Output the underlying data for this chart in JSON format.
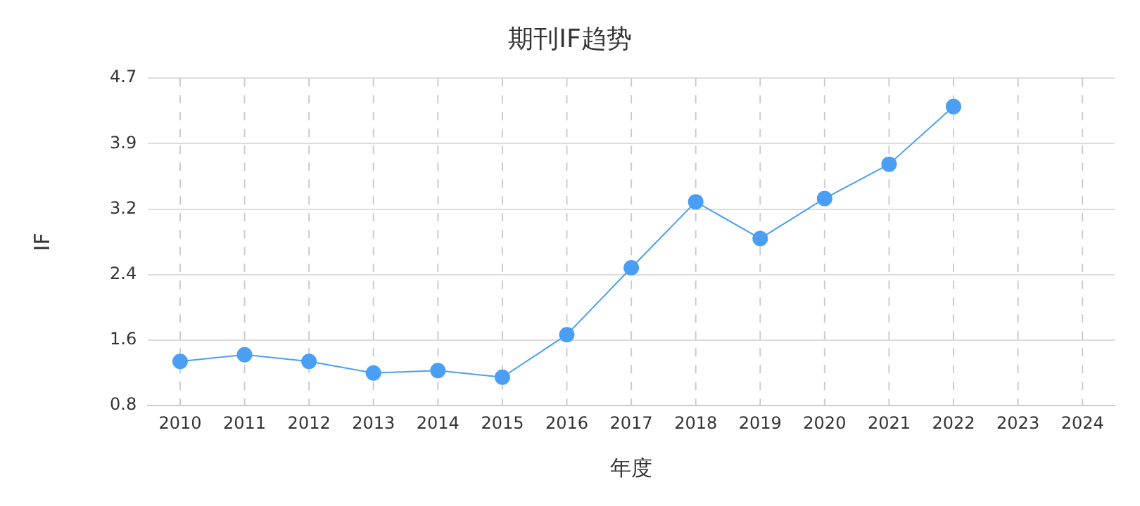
{
  "chart_data": {
    "type": "line",
    "title": "期刊IF趋势",
    "xlabel": "年度",
    "ylabel": "IF",
    "categories": [
      "2010",
      "2011",
      "2012",
      "2013",
      "2014",
      "2015",
      "2016",
      "2017",
      "2018",
      "2019",
      "2020",
      "2021",
      "2022",
      "2023",
      "2024"
    ],
    "series": [
      {
        "color": "#4a9ff5",
        "values": [
          1.33,
          1.41,
          1.33,
          1.19,
          1.22,
          1.14,
          1.65,
          2.45,
          3.24,
          2.8,
          3.28,
          3.69,
          4.38,
          null,
          null
        ]
      }
    ],
    "ylim": [
      0.8,
      4.72
    ],
    "yticks": [
      {
        "value": 0.8,
        "label": "0.8"
      },
      {
        "value": 1.584,
        "label": "1.6"
      },
      {
        "value": 2.368,
        "label": "2.4"
      },
      {
        "value": 3.152,
        "label": "3.2"
      },
      {
        "value": 3.936,
        "label": "3.9"
      },
      {
        "value": 4.72,
        "label": "4.7"
      }
    ],
    "grid": true,
    "legend": false,
    "marker": "circle",
    "line_style": "solid"
  }
}
